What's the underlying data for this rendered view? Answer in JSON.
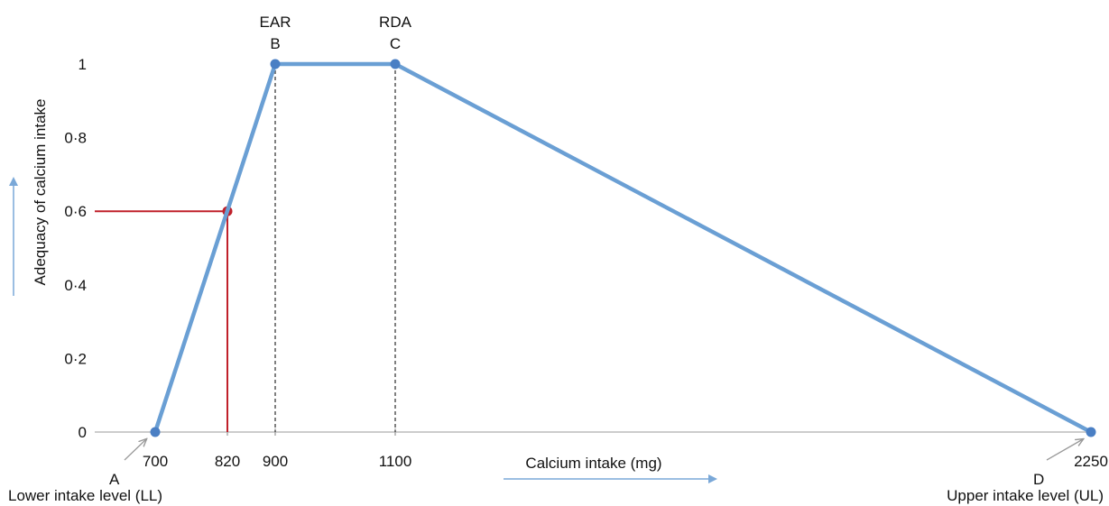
{
  "chart_data": {
    "type": "line",
    "xlabel": "Calcium intake (mg)",
    "ylabel": "Adequacy of calcium intake",
    "x_ticks": [
      700,
      820,
      900,
      1100,
      2250
    ],
    "y_ticks": [
      0,
      0.2,
      0.4,
      0.6,
      0.8,
      1
    ],
    "y_tick_labels": [
      "0",
      "0·2",
      "0·4",
      "0·6",
      "0·8",
      "1"
    ],
    "xlim": [
      600,
      2250
    ],
    "ylim": [
      0,
      1
    ],
    "series": [
      {
        "color": "#6a9fd4",
        "x": [
          700,
          900,
          1100,
          2250
        ],
        "y": [
          0,
          1,
          1,
          0
        ]
      }
    ],
    "highlight": {
      "x": 820,
      "y": 0.6,
      "color": "#c0202a"
    },
    "guide_lines_at_x": [
      900,
      1100
    ],
    "point_labels": [
      {
        "x": 900,
        "y": 1,
        "top": "EAR",
        "letter": "B"
      },
      {
        "x": 1100,
        "y": 1,
        "top": "RDA",
        "letter": "C"
      }
    ],
    "bottom_annotations": {
      "A": "A",
      "LL": "Lower intake level (LL)",
      "D": "D",
      "UL": "Upper intake level (UL)"
    },
    "colors": {
      "line": "#6a9fd4",
      "marker": "#4a7fc4",
      "highlight": "#c0202a",
      "axis": "#cccccc",
      "guide": "#555555",
      "arrow": "#7aa8d8"
    }
  }
}
